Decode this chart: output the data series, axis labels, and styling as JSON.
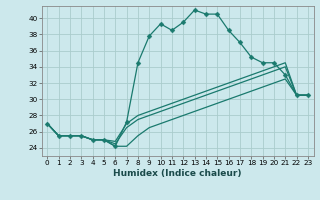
{
  "xlabel": "Humidex (Indice chaleur)",
  "bg_color": "#cce8ec",
  "grid_color": "#aacccc",
  "line_color": "#1a7a6e",
  "xlim": [
    -0.5,
    23.5
  ],
  "ylim": [
    23.0,
    41.5
  ],
  "yticks": [
    24,
    26,
    28,
    30,
    32,
    34,
    36,
    38,
    40
  ],
  "xticks": [
    0,
    1,
    2,
    3,
    4,
    5,
    6,
    7,
    8,
    9,
    10,
    11,
    12,
    13,
    14,
    15,
    16,
    17,
    18,
    19,
    20,
    21,
    22,
    23
  ],
  "series": [
    [
      27.0,
      25.5,
      25.5,
      25.5,
      25.0,
      25.0,
      24.2,
      27.2,
      34.5,
      37.8,
      39.3,
      38.5,
      39.5,
      41.0,
      40.5,
      40.5,
      38.5,
      37.0,
      35.2,
      34.5,
      34.5,
      33.0,
      30.5,
      30.5
    ],
    [
      27.0,
      25.5,
      25.5,
      25.5,
      25.0,
      25.0,
      24.8,
      27.0,
      28.0,
      28.5,
      29.0,
      29.5,
      30.0,
      30.5,
      31.0,
      31.5,
      32.0,
      32.5,
      33.0,
      33.5,
      34.0,
      34.5,
      30.5,
      30.5
    ],
    [
      27.0,
      25.5,
      25.5,
      25.5,
      25.0,
      25.0,
      24.5,
      26.5,
      27.5,
      28.0,
      28.5,
      29.0,
      29.5,
      30.0,
      30.5,
      31.0,
      31.5,
      32.0,
      32.5,
      33.0,
      33.5,
      34.0,
      30.5,
      30.5
    ],
    [
      27.0,
      25.5,
      25.5,
      25.5,
      25.0,
      25.0,
      24.2,
      24.2,
      25.5,
      26.5,
      27.0,
      27.5,
      28.0,
      28.5,
      29.0,
      29.5,
      30.0,
      30.5,
      31.0,
      31.5,
      32.0,
      32.5,
      30.5,
      30.5
    ]
  ],
  "xlabel_fontsize": 6.5,
  "tick_fontsize": 5.2,
  "marker_size": 2.5
}
